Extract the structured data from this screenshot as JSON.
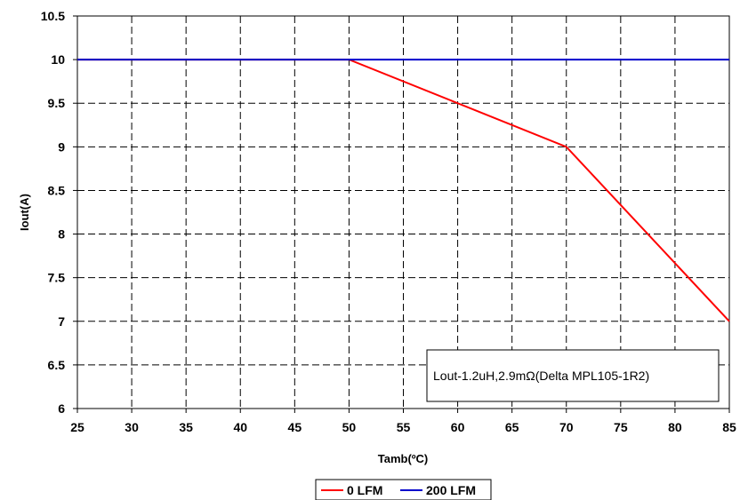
{
  "chart_data": {
    "type": "line",
    "xlabel": "Tamb(ºC)",
    "ylabel": "Iout(A)",
    "xlim": [
      25,
      85
    ],
    "ylim": [
      6,
      10.5
    ],
    "x_ticks": [
      "25",
      "30",
      "35",
      "40",
      "45",
      "50",
      "55",
      "60",
      "65",
      "70",
      "75",
      "80",
      "85"
    ],
    "y_ticks": [
      "6",
      "6.5",
      "7",
      "7.5",
      "8",
      "8.5",
      "9",
      "9.5",
      "10",
      "10.5"
    ],
    "grid": "dashed",
    "legend_position": "bottom",
    "annotation": "Lout-1.2uH,2.9mΩ(Delta MPL105-1R2)",
    "series": [
      {
        "name": "0 LFM",
        "color": "#ff0000",
        "x": [
          25,
          50,
          70,
          85
        ],
        "y": [
          10,
          10,
          9,
          7
        ]
      },
      {
        "name": "200 LFM",
        "color": "#0000cc",
        "x": [
          25,
          85
        ],
        "y": [
          10,
          10
        ]
      }
    ]
  }
}
